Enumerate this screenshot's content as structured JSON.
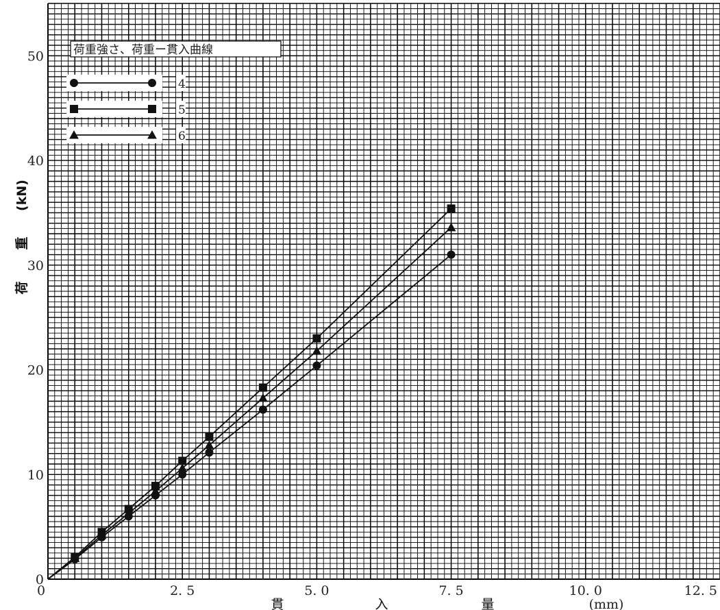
{
  "chart_data": {
    "type": "line",
    "title": "荷重強さ、荷重ー貫入曲線",
    "xlabel": {
      "parts": [
        "貫",
        "入",
        "量"
      ],
      "unit": "(mm)"
    },
    "ylabel": {
      "parts": [
        "荷",
        "重"
      ],
      "unit": "(kN)"
    },
    "xlim": [
      0,
      12.5
    ],
    "ylim": [
      0,
      55
    ],
    "grid": true,
    "grid_minor_x": 0.125,
    "grid_minor_y": 0.5,
    "x_ticks": [
      {
        "value": 0,
        "label": "0"
      },
      {
        "value": 2.5,
        "label": "2. 5"
      },
      {
        "value": 5.0,
        "label": "5. 0"
      },
      {
        "value": 7.5,
        "label": "7. 5"
      },
      {
        "value": 10.0,
        "label": "10. 0"
      },
      {
        "value": 12.5,
        "label": "12. 5"
      }
    ],
    "y_ticks": [
      {
        "value": 0,
        "label": "0"
      },
      {
        "value": 10,
        "label": "10"
      },
      {
        "value": 20,
        "label": "20"
      },
      {
        "value": 30,
        "label": "30"
      },
      {
        "value": 40,
        "label": "40"
      },
      {
        "value": 50,
        "label": "50"
      }
    ],
    "legend_position": "top-left",
    "series": [
      {
        "name": "4",
        "marker": "circle",
        "color": "#111111",
        "points": [
          [
            0,
            0
          ],
          [
            0.5,
            1.9
          ],
          [
            1.0,
            4.0
          ],
          [
            1.5,
            6.0
          ],
          [
            2.0,
            8.0
          ],
          [
            2.5,
            10.0
          ],
          [
            3.0,
            12.1
          ],
          [
            4.0,
            16.2
          ],
          [
            5.0,
            20.4
          ],
          [
            7.5,
            31.0
          ]
        ]
      },
      {
        "name": "5",
        "marker": "square",
        "color": "#111111",
        "points": [
          [
            0,
            0
          ],
          [
            0.5,
            2.1
          ],
          [
            1.0,
            4.5
          ],
          [
            1.5,
            6.7
          ],
          [
            2.0,
            8.9
          ],
          [
            2.5,
            11.3
          ],
          [
            3.0,
            13.6
          ],
          [
            4.0,
            18.3
          ],
          [
            5.0,
            23.0
          ],
          [
            7.5,
            35.4
          ]
        ]
      },
      {
        "name": "6",
        "marker": "triangle",
        "color": "#111111",
        "points": [
          [
            0,
            0
          ],
          [
            0.5,
            2.0
          ],
          [
            1.0,
            4.2
          ],
          [
            1.5,
            6.3
          ],
          [
            2.0,
            8.4
          ],
          [
            2.5,
            10.6
          ],
          [
            3.0,
            12.8
          ],
          [
            4.0,
            17.3
          ],
          [
            5.0,
            21.8
          ],
          [
            7.5,
            33.6
          ]
        ]
      }
    ]
  }
}
